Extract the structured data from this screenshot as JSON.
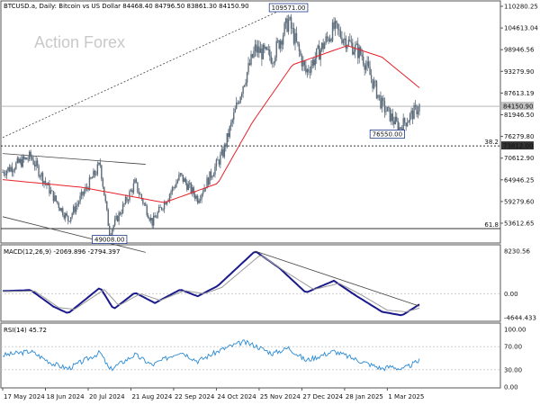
{
  "header": {
    "symbol_line": "BTCUSD.a, Daily:  Bitcoin vs US Dollar  84468.40 84796.50 83861.30 84150.90"
  },
  "watermark": "Action Forex",
  "colors": {
    "candle": "#5b6b7a",
    "ma": "#e8202a",
    "macd_main": "#1a1a8c",
    "macd_signal": "#9a9a9a",
    "rsi": "#2a8ad4",
    "trendline": "#444444",
    "level": "#333333"
  },
  "chart_data": [
    {
      "type": "candlestick",
      "panel": "price",
      "ylim": [
        49008,
        111000
      ],
      "y_ticks": [
        "110280.25",
        "104613.04",
        "98946.56",
        "93279.90",
        "87613.19",
        "81946.50",
        "76279.80",
        "70612.90",
        "64946.25",
        "59279.60",
        "53612.65"
      ],
      "current_price": "84150.90",
      "anchor_points": [
        {
          "date": "2024-05-17",
          "close": 67000
        },
        {
          "date": "2024-06-07",
          "close": 71000
        },
        {
          "date": "2024-06-24",
          "close": 60500
        },
        {
          "date": "2024-07-05",
          "close": 54500
        },
        {
          "date": "2024-07-29",
          "close": 69000
        },
        {
          "date": "2024-08-05",
          "close": 51000
        },
        {
          "date": "2024-08-24",
          "close": 64000
        },
        {
          "date": "2024-09-06",
          "close": 53800
        },
        {
          "date": "2024-09-27",
          "close": 66000
        },
        {
          "date": "2024-10-10",
          "close": 60000
        },
        {
          "date": "2024-10-29",
          "close": 72000
        },
        {
          "date": "2024-11-13",
          "close": 90000
        },
        {
          "date": "2024-11-22",
          "close": 99000
        },
        {
          "date": "2024-12-05",
          "close": 97000
        },
        {
          "date": "2024-12-17",
          "close": 106500
        },
        {
          "date": "2024-12-30",
          "close": 93000
        },
        {
          "date": "2025-01-20",
          "close": 104500
        },
        {
          "date": "2025-02-10",
          "close": 97500
        },
        {
          "date": "2025-02-25",
          "close": 84500
        },
        {
          "date": "2025-03-10",
          "close": 78500
        },
        {
          "date": "2025-03-25",
          "close": 84150
        }
      ],
      "moving_average_anchor_points": [
        {
          "date": "2024-05-17",
          "value": 65000
        },
        {
          "date": "2024-07-15",
          "value": 63000
        },
        {
          "date": "2024-09-15",
          "value": 59000
        },
        {
          "date": "2024-10-25",
          "value": 64000
        },
        {
          "date": "2024-11-20",
          "value": 80000
        },
        {
          "date": "2024-12-20",
          "value": 95000
        },
        {
          "date": "2025-01-30",
          "value": 100000
        },
        {
          "date": "2025-02-25",
          "value": 97000
        },
        {
          "date": "2025-03-25",
          "value": 89000
        }
      ],
      "levels": [
        {
          "label": "38.2",
          "value": 73812,
          "price_box": "73812.00"
        },
        {
          "label": "61.8",
          "value": 52200
        }
      ],
      "annotations": [
        {
          "text": "109571.00",
          "date": "2024-12-17",
          "value": 109571
        },
        {
          "text": "76550.00",
          "date": "2025-03-01",
          "value": 76550
        },
        {
          "text": "49008.00",
          "date": "2024-08-05",
          "value": 49008
        }
      ]
    },
    {
      "type": "line",
      "panel": "macd",
      "title": "MACD(12,26,9) -2069.896 -2794.397",
      "y_ticks": [
        "8230.56",
        "0.00",
        "-4644.433"
      ],
      "series": [
        {
          "values_by_date": [
            [
              "2024-05-17",
              500
            ],
            [
              "2024-06-07",
              700
            ],
            [
              "2024-06-24",
              -2500
            ],
            [
              "2024-07-05",
              -3800
            ],
            [
              "2024-07-29",
              1200
            ],
            [
              "2024-08-08",
              -3000
            ],
            [
              "2024-08-24",
              200
            ],
            [
              "2024-09-08",
              -1800
            ],
            [
              "2024-09-27",
              800
            ],
            [
              "2024-10-10",
              -500
            ],
            [
              "2024-10-25",
              1500
            ],
            [
              "2024-11-22",
              8230
            ],
            [
              "2024-12-10",
              5000
            ],
            [
              "2024-12-30",
              200
            ],
            [
              "2025-01-20",
              2500
            ],
            [
              "2025-02-05",
              -300
            ],
            [
              "2025-02-25",
              -3500
            ],
            [
              "2025-03-12",
              -4200
            ],
            [
              "2025-03-25",
              -2070
            ]
          ]
        },
        {
          "values_by_date": [
            [
              "2024-05-17",
              400
            ],
            [
              "2024-06-10",
              500
            ],
            [
              "2024-06-28",
              -2700
            ],
            [
              "2024-07-10",
              -3000
            ],
            [
              "2024-08-01",
              800
            ],
            [
              "2024-08-12",
              -2300
            ],
            [
              "2024-08-28",
              0
            ],
            [
              "2024-09-12",
              -1300
            ],
            [
              "2024-09-30",
              600
            ],
            [
              "2024-10-15",
              0
            ],
            [
              "2024-10-28",
              1200
            ],
            [
              "2024-11-26",
              7500
            ],
            [
              "2024-12-15",
              4200
            ],
            [
              "2025-01-05",
              800
            ],
            [
              "2025-01-24",
              2000
            ],
            [
              "2025-02-10",
              -300
            ],
            [
              "2025-03-01",
              -3200
            ],
            [
              "2025-03-15",
              -3500
            ],
            [
              "2025-03-25",
              -2794
            ]
          ]
        }
      ],
      "zero_line": 0
    },
    {
      "type": "line",
      "panel": "rsi",
      "title": "RSI(14) 45.72",
      "ylim": [
        0,
        100
      ],
      "y_ticks": [
        "100.00",
        "70.00",
        "30.00",
        "0.00"
      ],
      "levels": [
        70,
        30
      ],
      "series": [
        {
          "values_by_date": [
            [
              "2024-05-17",
              55
            ],
            [
              "2024-06-07",
              62
            ],
            [
              "2024-06-24",
              40
            ],
            [
              "2024-07-05",
              32
            ],
            [
              "2024-07-29",
              60
            ],
            [
              "2024-08-05",
              30
            ],
            [
              "2024-08-24",
              56
            ],
            [
              "2024-09-06",
              38
            ],
            [
              "2024-09-27",
              62
            ],
            [
              "2024-10-10",
              45
            ],
            [
              "2024-10-29",
              66
            ],
            [
              "2024-11-13",
              78
            ],
            [
              "2024-11-22",
              72
            ],
            [
              "2024-12-05",
              58
            ],
            [
              "2024-12-17",
              68
            ],
            [
              "2024-12-30",
              46
            ],
            [
              "2025-01-20",
              62
            ],
            [
              "2025-02-10",
              44
            ],
            [
              "2025-02-25",
              32
            ],
            [
              "2025-03-05",
              36
            ],
            [
              "2025-03-12",
              30
            ],
            [
              "2025-03-25",
              45.72
            ]
          ]
        }
      ]
    }
  ],
  "x_axis": {
    "labels": [
      {
        "date": "2024-05-17",
        "text": "17 May 2024"
      },
      {
        "date": "2024-06-18",
        "text": "18 Jun 2024"
      },
      {
        "date": "2024-07-20",
        "text": "20 Jul 2024"
      },
      {
        "date": "2024-08-21",
        "text": "21 Aug 2024"
      },
      {
        "date": "2024-09-22",
        "text": "22 Sep 2024"
      },
      {
        "date": "2024-10-24",
        "text": "24 Oct 2024"
      },
      {
        "date": "2024-11-25",
        "text": "25 Nov 2024"
      },
      {
        "date": "2024-12-27",
        "text": "27 Dec 2024"
      },
      {
        "date": "2025-01-28",
        "text": "28 Jan 2025"
      },
      {
        "date": "2025-03-01",
        "text": "1 Mar 2025"
      }
    ]
  }
}
